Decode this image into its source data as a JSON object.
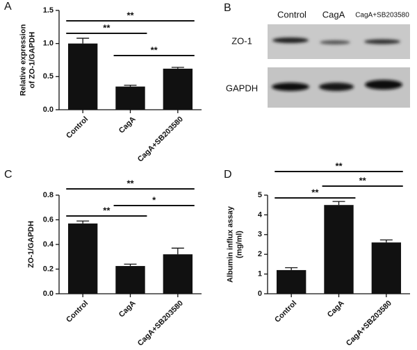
{
  "chart_data": [
    {
      "type": "bar",
      "label": "A",
      "ylabel": [
        "Relative expression",
        "of ZO-1/GAPDH"
      ],
      "categories": [
        "Control",
        "CagA",
        "CagA+SB203580"
      ],
      "values": [
        1.0,
        0.35,
        0.62
      ],
      "errors": [
        0.08,
        0.02,
        0.02
      ],
      "color": "#111111",
      "ylim": [
        0,
        1.5
      ],
      "yticks": [
        {
          "value": 0,
          "label": "0.0"
        },
        0.5,
        {
          "value": 1,
          "label": "1.0"
        },
        1.5
      ],
      "annotations": [
        {
          "text": "**",
          "between": [
            "Control",
            "CagA+SB203580"
          ]
        },
        {
          "text": "**",
          "between": [
            "Control",
            "CagA"
          ]
        },
        {
          "text": "**",
          "between": [
            "CagA",
            "CagA+SB203580"
          ]
        }
      ]
    },
    {
      "type": "bar",
      "label": "C",
      "ylabel": [
        "ZO-1/GAPDH"
      ],
      "categories": [
        "Control",
        "CagA",
        "CagA+SB203580"
      ],
      "values": [
        0.57,
        0.225,
        0.32
      ],
      "errors": [
        0.02,
        0.015,
        0.05
      ],
      "color": "#111111",
      "ylim": [
        0,
        0.8
      ],
      "yticks": [
        {
          "value": 0,
          "label": "0.0"
        },
        0.2,
        0.4,
        0.6,
        0.8
      ],
      "annotations": [
        {
          "text": "**",
          "between": [
            "Control",
            "CagA+SB203580"
          ]
        },
        {
          "text": "*",
          "between": [
            "CagA",
            "CagA+SB203580"
          ]
        },
        {
          "text": "**",
          "between": [
            "Control",
            "CagA"
          ]
        }
      ]
    },
    {
      "type": "bar",
      "label": "D",
      "ylabel": [
        "Albumin influx assay",
        "(mg/ml)"
      ],
      "categories": [
        "Control",
        "CagA",
        "CagA+SB203580"
      ],
      "values": [
        1.2,
        4.5,
        2.6
      ],
      "errors": [
        0.12,
        0.18,
        0.13
      ],
      "color": "#111111",
      "ylim": [
        0,
        5
      ],
      "yticks": [
        0,
        1,
        2,
        3,
        4,
        5
      ],
      "annotations": [
        {
          "text": "**",
          "between": [
            "Control",
            "CagA+SB203580"
          ]
        },
        {
          "text": "**",
          "between": [
            "CagA",
            "CagA+SB203580"
          ]
        },
        {
          "text": "**",
          "between": [
            "Control",
            "CagA"
          ]
        }
      ]
    }
  ],
  "blot": {
    "label": "B",
    "lanes": [
      "Control",
      "CagA",
      "CagA+SB203580"
    ],
    "rows": [
      "ZO-1",
      "GAPDH"
    ]
  }
}
